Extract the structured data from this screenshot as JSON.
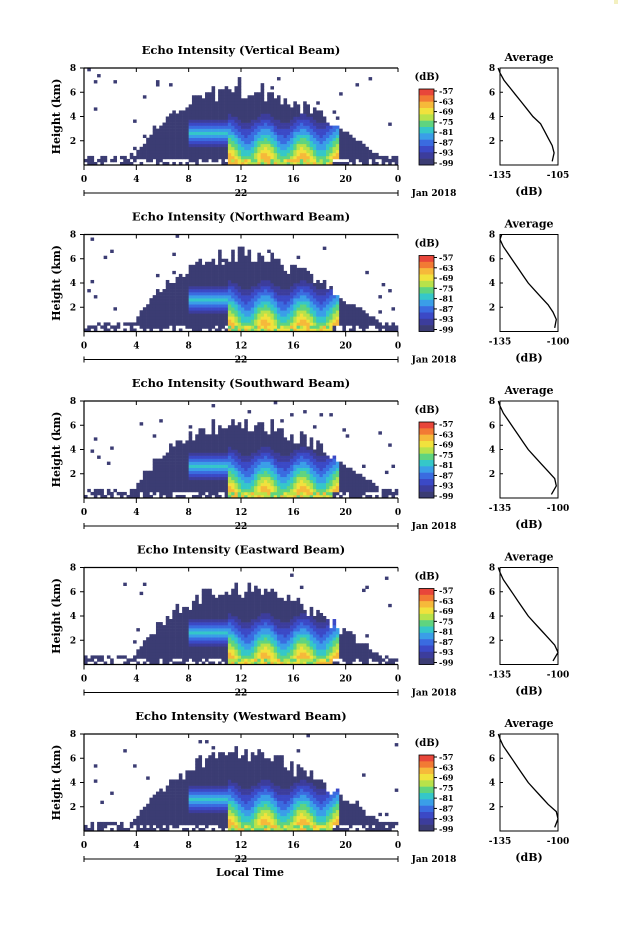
{
  "figure": {
    "xlabel": "Local Time",
    "date_label": "Jan 2018",
    "day_label": "22",
    "colorbar_unit": "(dB)",
    "colorbar_ticks": [
      "-57",
      "-63",
      "-69",
      "-75",
      "-81",
      "-87",
      "-93",
      "-99"
    ],
    "colorbar_colors": [
      "#e8463a",
      "#f27a34",
      "#f6b93a",
      "#f1e23d",
      "#b8e24a",
      "#5fd47f",
      "#35c7c9",
      "#3a9ee8",
      "#3a6be0",
      "#3b49c6",
      "#3c3d9c",
      "#3b3c73"
    ],
    "profile_title": "Average",
    "profile_xlabel": "(dB)",
    "colors": {
      "background_echo": "#3b3c73",
      "profile_line": "#000000"
    }
  },
  "chart_data": [
    {
      "type": "heatmap",
      "title": "Echo Intensity (Vertical Beam)",
      "ylabel": "Height (km)",
      "xlim": [
        0,
        24
      ],
      "ylim": [
        0,
        8
      ],
      "xticks": [
        "0",
        "4",
        "8",
        "12",
        "16",
        "20",
        "0"
      ],
      "yticks": [
        "2",
        "4",
        "6",
        "8"
      ],
      "colorbar_range": [
        -99,
        -57
      ],
      "echo_region": {
        "start_time": 3.5,
        "end_time": 23.5,
        "top_km_max": 7.0
      },
      "profile": {
        "xlim": [
          -135,
          -105
        ],
        "xticks": [
          "-135",
          "-105"
        ],
        "ylim": [
          0,
          8
        ],
        "yticks": [
          "2",
          "4",
          "6",
          "8"
        ],
        "x": [
          -108,
          -107,
          -108,
          -110,
          -112,
          -114,
          -118,
          -121,
          -124,
          -127,
          -130,
          -133,
          -135,
          -136
        ],
        "y": [
          0.3,
          1.0,
          1.6,
          2.2,
          2.8,
          3.4,
          4.0,
          4.6,
          5.2,
          5.8,
          6.4,
          7.0,
          7.6,
          8.0
        ]
      }
    },
    {
      "type": "heatmap",
      "title": "Echo Intensity (Northward Beam)",
      "ylabel": "Height (km)",
      "xlim": [
        0,
        24
      ],
      "ylim": [
        0,
        8
      ],
      "xticks": [
        "0",
        "4",
        "8",
        "12",
        "16",
        "20",
        "0"
      ],
      "yticks": [
        "2",
        "4",
        "6",
        "8"
      ],
      "colorbar_range": [
        -99,
        -57
      ],
      "echo_region": {
        "start_time": 3.5,
        "end_time": 23.5,
        "top_km_max": 7.0
      },
      "profile": {
        "xlim": [
          -135,
          -100
        ],
        "xticks": [
          "-135",
          "-100"
        ],
        "ylim": [
          0,
          8
        ],
        "yticks": [
          "2",
          "4",
          "6",
          "8"
        ],
        "x": [
          -102,
          -101,
          -103,
          -106,
          -110,
          -114,
          -118,
          -121,
          -124,
          -127,
          -130,
          -133,
          -135,
          -134
        ],
        "y": [
          0.3,
          1.0,
          1.6,
          2.2,
          2.8,
          3.4,
          4.0,
          4.6,
          5.2,
          5.8,
          6.4,
          7.0,
          7.6,
          8.0
        ]
      }
    },
    {
      "type": "heatmap",
      "title": "Echo Intensity (Southward Beam)",
      "ylabel": "Height (km)",
      "xlim": [
        0,
        24
      ],
      "ylim": [
        0,
        8
      ],
      "xticks": [
        "0",
        "4",
        "8",
        "12",
        "16",
        "20",
        "0"
      ],
      "yticks": [
        "2",
        "4",
        "6",
        "8"
      ],
      "colorbar_range": [
        -99,
        -57
      ],
      "echo_region": {
        "start_time": 3.5,
        "end_time": 23.5,
        "top_km_max": 7.0
      },
      "profile": {
        "xlim": [
          -135,
          -100
        ],
        "xticks": [
          "-135",
          "-100"
        ],
        "ylim": [
          0,
          8
        ],
        "yticks": [
          "2",
          "4",
          "6",
          "8"
        ],
        "x": [
          -104,
          -101,
          -102,
          -106,
          -110,
          -114,
          -118,
          -121,
          -124,
          -127,
          -130,
          -133,
          -135,
          -136
        ],
        "y": [
          0.3,
          1.0,
          1.6,
          2.2,
          2.8,
          3.4,
          4.0,
          4.6,
          5.2,
          5.8,
          6.4,
          7.0,
          7.6,
          8.0
        ]
      }
    },
    {
      "type": "heatmap",
      "title": "Echo Intensity (Eastward Beam)",
      "ylabel": "Height (km)",
      "xlim": [
        0,
        24
      ],
      "ylim": [
        0,
        8
      ],
      "xticks": [
        "0",
        "4",
        "8",
        "12",
        "16",
        "20",
        "0"
      ],
      "yticks": [
        "2",
        "4",
        "6",
        "8"
      ],
      "colorbar_range": [
        -99,
        -57
      ],
      "echo_region": {
        "start_time": 3.5,
        "end_time": 23.5,
        "top_km_max": 7.0
      },
      "profile": {
        "xlim": [
          -135,
          -100
        ],
        "xticks": [
          "-135",
          "-100"
        ],
        "ylim": [
          0,
          8
        ],
        "yticks": [
          "2",
          "4",
          "6",
          "8"
        ],
        "x": [
          -103,
          -100,
          -102,
          -106,
          -110,
          -114,
          -118,
          -121,
          -124,
          -127,
          -130,
          -133,
          -135,
          -136
        ],
        "y": [
          0.3,
          1.0,
          1.6,
          2.2,
          2.8,
          3.4,
          4.0,
          4.6,
          5.2,
          5.8,
          6.4,
          7.0,
          7.6,
          8.0
        ]
      }
    },
    {
      "type": "heatmap",
      "title": "Echo Intensity (Westward Beam)",
      "ylabel": "Height (km)",
      "xlim": [
        0,
        24
      ],
      "ylim": [
        0,
        8
      ],
      "xticks": [
        "0",
        "4",
        "8",
        "12",
        "16",
        "20",
        "0"
      ],
      "yticks": [
        "2",
        "4",
        "6",
        "8"
      ],
      "colorbar_range": [
        -99,
        -57
      ],
      "echo_region": {
        "start_time": 3.5,
        "end_time": 23.5,
        "top_km_max": 7.0
      },
      "profile": {
        "xlim": [
          -135,
          -100
        ],
        "xticks": [
          "-135",
          "-100"
        ],
        "ylim": [
          0,
          8
        ],
        "yticks": [
          "2",
          "4",
          "6",
          "8"
        ],
        "x": [
          -102,
          -100,
          -101,
          -106,
          -110,
          -114,
          -118,
          -121,
          -124,
          -127,
          -130,
          -133,
          -135,
          -136
        ],
        "y": [
          0.3,
          1.0,
          1.6,
          2.2,
          2.8,
          3.4,
          4.0,
          4.6,
          5.2,
          5.8,
          6.4,
          7.0,
          7.6,
          8.0
        ]
      }
    }
  ]
}
